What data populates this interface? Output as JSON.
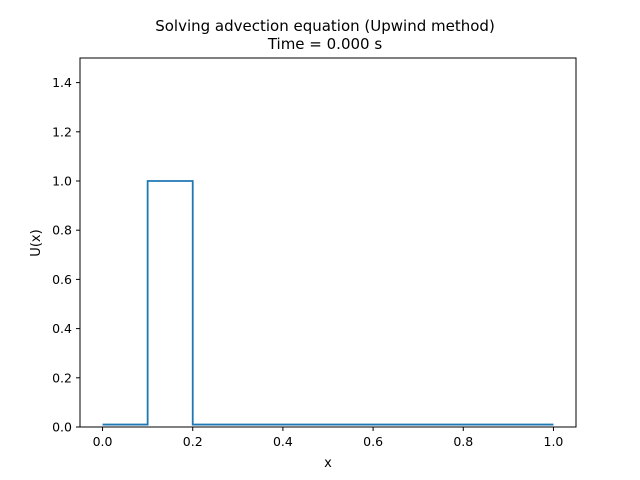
{
  "chart_data": {
    "type": "line",
    "title": "Solving advection equation (Upwind method)",
    "subtitle": "Time = 0.000 s",
    "xlabel": "x",
    "ylabel": "U(x)",
    "xlim": [
      -0.05,
      1.05
    ],
    "ylim": [
      0.0,
      1.5
    ],
    "xticks": [
      "0.0",
      "0.2",
      "0.4",
      "0.6",
      "0.8",
      "1.0"
    ],
    "yticks": [
      "0.0",
      "0.2",
      "0.4",
      "0.6",
      "0.8",
      "1.0",
      "1.2",
      "1.4"
    ],
    "grid": false,
    "series": [
      {
        "color": "#1f77b4",
        "x": [
          0.0,
          0.1,
          0.1,
          0.2,
          0.2,
          1.0
        ],
        "y": [
          0.01,
          0.01,
          1.0,
          1.0,
          0.01,
          0.01
        ]
      }
    ]
  }
}
